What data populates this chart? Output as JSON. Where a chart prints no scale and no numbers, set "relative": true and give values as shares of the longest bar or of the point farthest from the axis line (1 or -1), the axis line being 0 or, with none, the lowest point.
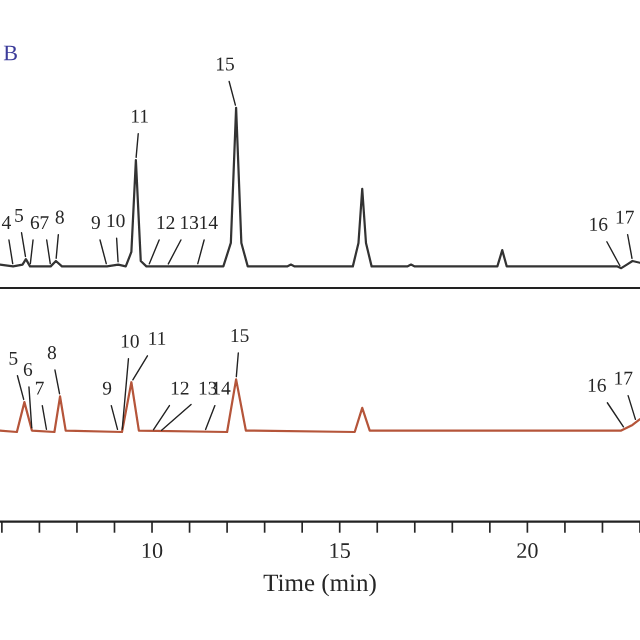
{
  "chart_data": [
    {
      "type": "line",
      "title": "B",
      "relative": true,
      "xlim": [
        5.95,
        23.0
      ],
      "tick_labels": false,
      "grid": false,
      "legend": false,
      "series": [
        {
          "color": "#333333",
          "x": [
            5.95,
            6.3,
            6.55,
            6.64,
            6.75,
            7.3,
            7.44,
            7.6,
            8.8,
            9.1,
            9.3,
            9.45,
            9.57,
            9.7,
            9.85,
            11.9,
            12.1,
            12.24,
            12.38,
            12.55,
            13.6,
            13.7,
            13.8,
            15.35,
            15.5,
            15.6,
            15.7,
            15.85,
            16.8,
            16.9,
            17.0,
            19.2,
            19.33,
            19.45,
            22.4,
            22.5,
            22.65,
            22.8,
            23.0
          ],
          "values": [
            0.13,
            0.12,
            0.13,
            0.16,
            0.12,
            0.12,
            0.15,
            0.12,
            0.12,
            0.13,
            0.12,
            0.2,
            0.71,
            0.15,
            0.12,
            0.12,
            0.25,
            1.0,
            0.25,
            0.12,
            0.12,
            0.13,
            0.12,
            0.12,
            0.25,
            0.55,
            0.25,
            0.12,
            0.12,
            0.13,
            0.12,
            0.12,
            0.21,
            0.12,
            0.12,
            0.11,
            0.13,
            0.15,
            0.14
          ]
        }
      ],
      "annotations": [
        {
          "text": "4",
          "x": 6.3,
          "y": 0.12
        },
        {
          "text": "5",
          "x": 6.64,
          "y": 0.16
        },
        {
          "text": "6",
          "x": 6.75,
          "y": 0.12
        },
        {
          "text": "7",
          "x": 7.3,
          "y": 0.12
        },
        {
          "text": "8",
          "x": 7.44,
          "y": 0.15
        },
        {
          "text": "9",
          "x": 8.8,
          "y": 0.12
        },
        {
          "text": "10",
          "x": 9.1,
          "y": 0.13
        },
        {
          "text": "11",
          "x": 9.57,
          "y": 0.71
        },
        {
          "text": "12",
          "x": 9.9,
          "y": 0.12
        },
        {
          "text": "13",
          "x": 10.4,
          "y": 0.12
        },
        {
          "text": "14",
          "x": 11.2,
          "y": 0.12
        },
        {
          "text": "15",
          "x": 12.24,
          "y": 1.0
        },
        {
          "text": "16",
          "x": 22.5,
          "y": 0.11
        },
        {
          "text": "17",
          "x": 22.8,
          "y": 0.15
        }
      ]
    },
    {
      "type": "line",
      "relative": true,
      "xlim": [
        5.95,
        23.0
      ],
      "tick_labels": "x",
      "grid": false,
      "legend": false,
      "xlabel": "Time (min)",
      "xticks": [
        {
          "value": 6,
          "label": null
        },
        {
          "value": 7,
          "label": null
        },
        {
          "value": 8,
          "label": null
        },
        {
          "value": 9,
          "label": null
        },
        10,
        {
          "value": 11,
          "label": null
        },
        {
          "value": 12,
          "label": null
        },
        {
          "value": 13,
          "label": null
        },
        {
          "value": 14,
          "label": null
        },
        15,
        {
          "value": 16,
          "label": null
        },
        {
          "value": 17,
          "label": null
        },
        {
          "value": 18,
          "label": null
        },
        {
          "value": 19,
          "label": null
        },
        20,
        {
          "value": 21,
          "label": null
        },
        {
          "value": 22,
          "label": null
        },
        {
          "value": 23,
          "label": null
        }
      ],
      "series": [
        {
          "color": "#b5553a",
          "x": [
            5.95,
            6.4,
            6.6,
            6.8,
            7.4,
            7.55,
            7.7,
            9.2,
            9.45,
            9.65,
            12.0,
            12.24,
            12.5,
            15.4,
            15.6,
            15.8,
            22.5,
            22.8,
            23.0
          ],
          "values": [
            0.64,
            0.63,
            0.84,
            0.64,
            0.63,
            0.88,
            0.64,
            0.63,
            0.98,
            0.64,
            0.63,
            1.0,
            0.64,
            0.63,
            0.8,
            0.64,
            0.64,
            0.68,
            0.72
          ]
        }
      ],
      "annotations": [
        {
          "text": "5",
          "x": 6.6,
          "y": 0.84
        },
        {
          "text": "6",
          "x": 6.8,
          "y": 0.64
        },
        {
          "text": "7",
          "x": 7.2,
          "y": 0.63
        },
        {
          "text": "8",
          "x": 7.55,
          "y": 0.88
        },
        {
          "text": "9",
          "x": 9.1,
          "y": 0.63
        },
        {
          "text": "10",
          "x": 9.2,
          "y": 0.63
        },
        {
          "text": "11",
          "x": 9.45,
          "y": 0.98
        },
        {
          "text": "12",
          "x": 10.0,
          "y": 0.63
        },
        {
          "text": "13",
          "x": 10.2,
          "y": 0.63
        },
        {
          "text": "14",
          "x": 11.4,
          "y": 0.63
        },
        {
          "text": "15",
          "x": 12.24,
          "y": 1.0
        },
        {
          "text": "16",
          "x": 22.6,
          "y": 0.65
        },
        {
          "text": "17",
          "x": 22.9,
          "y": 0.7
        }
      ]
    }
  ]
}
